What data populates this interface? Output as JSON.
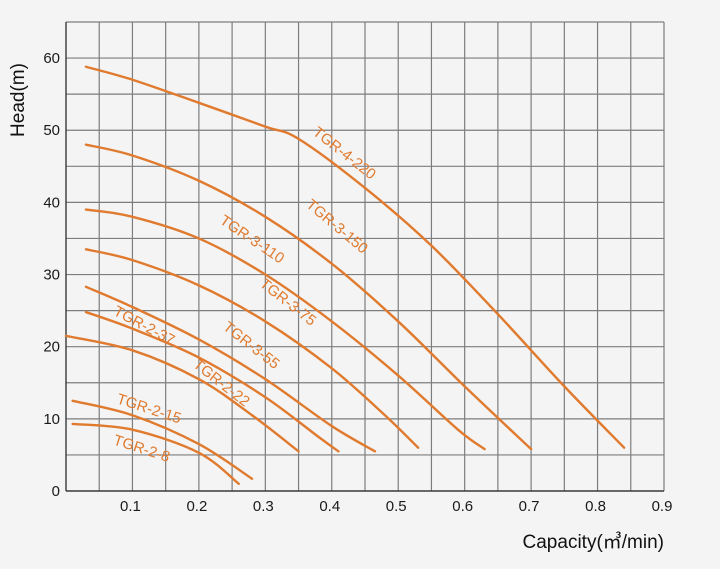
{
  "chart_data": {
    "type": "line",
    "xlabel": "Capacity(㎥/min)",
    "ylabel": "Head(m)",
    "xlim": [
      0,
      0.9
    ],
    "ylim": [
      0,
      65
    ],
    "grid": true,
    "x_ticks": [
      {
        "value": 0.1,
        "label": "0.1"
      },
      {
        "value": 0.2,
        "label": "0.2"
      },
      {
        "value": 0.3,
        "label": "0.3"
      },
      {
        "value": 0.4,
        "label": "0.4"
      },
      {
        "value": 0.5,
        "label": "0.5"
      },
      {
        "value": 0.6,
        "label": "0.6"
      },
      {
        "value": 0.7,
        "label": "0.7"
      },
      {
        "value": 0.8,
        "label": "0.8"
      },
      {
        "value": 0.9,
        "label": "0.9"
      }
    ],
    "y_ticks": [
      {
        "value": 0,
        "label": "0"
      },
      {
        "value": 10,
        "label": "10"
      },
      {
        "value": 20,
        "label": "20"
      },
      {
        "value": 30,
        "label": "30"
      },
      {
        "value": 40,
        "label": "40"
      },
      {
        "value": 50,
        "label": "50"
      },
      {
        "value": 60,
        "label": "60"
      }
    ],
    "series": [
      {
        "name": "TGR-4-220",
        "label_pos": [
          0.37,
          49.5
        ],
        "label_angle": 38,
        "points": [
          [
            0.03,
            58.8
          ],
          [
            0.1,
            57.0
          ],
          [
            0.2,
            53.8
          ],
          [
            0.3,
            50.5
          ],
          [
            0.35,
            48.8
          ],
          [
            0.45,
            42.0
          ],
          [
            0.55,
            34.0
          ],
          [
            0.65,
            24.5
          ],
          [
            0.75,
            14.5
          ],
          [
            0.84,
            6.0
          ]
        ]
      },
      {
        "name": "TGR-3-150",
        "label_pos": [
          0.36,
          39.5
        ],
        "label_angle": 40,
        "points": [
          [
            0.03,
            48.0
          ],
          [
            0.1,
            46.5
          ],
          [
            0.2,
            43.0
          ],
          [
            0.3,
            38.0
          ],
          [
            0.4,
            31.5
          ],
          [
            0.5,
            23.5
          ],
          [
            0.6,
            14.5
          ],
          [
            0.7,
            5.8
          ]
        ]
      },
      {
        "name": "TGR-3-110",
        "label_pos": [
          0.23,
          37.2
        ],
        "label_angle": 34,
        "points": [
          [
            0.03,
            39.0
          ],
          [
            0.1,
            38.0
          ],
          [
            0.2,
            35.0
          ],
          [
            0.3,
            30.0
          ],
          [
            0.4,
            23.5
          ],
          [
            0.5,
            16.0
          ],
          [
            0.59,
            8.5
          ],
          [
            0.63,
            5.8
          ]
        ]
      },
      {
        "name": "TGR-3-75",
        "label_pos": [
          0.29,
          28.5
        ],
        "label_angle": 38,
        "points": [
          [
            0.03,
            33.5
          ],
          [
            0.1,
            32.0
          ],
          [
            0.2,
            28.5
          ],
          [
            0.3,
            23.5
          ],
          [
            0.4,
            17.0
          ],
          [
            0.48,
            10.5
          ],
          [
            0.53,
            6.0
          ]
        ]
      },
      {
        "name": "TGR-3-55",
        "label_pos": [
          0.235,
          22.5
        ],
        "label_angle": 38,
        "points": [
          [
            0.03,
            28.3
          ],
          [
            0.1,
            25.5
          ],
          [
            0.2,
            21.0
          ],
          [
            0.3,
            15.5
          ],
          [
            0.4,
            9.0
          ],
          [
            0.465,
            5.5
          ]
        ]
      },
      {
        "name": "TGR-2-37",
        "label_pos": [
          0.07,
          24.5
        ],
        "label_angle": 28,
        "points": [
          [
            0.03,
            24.8
          ],
          [
            0.1,
            22.5
          ],
          [
            0.2,
            18.5
          ],
          [
            0.3,
            13.0
          ],
          [
            0.38,
            7.5
          ],
          [
            0.41,
            5.5
          ]
        ]
      },
      {
        "name": "TGR-2-22",
        "label_pos": [
          0.19,
          17.3
        ],
        "label_angle": 38,
        "points": [
          [
            0.0,
            21.5
          ],
          [
            0.1,
            19.5
          ],
          [
            0.2,
            15.5
          ],
          [
            0.28,
            10.5
          ],
          [
            0.35,
            5.5
          ]
        ]
      },
      {
        "name": "TGR-2-15",
        "label_pos": [
          0.075,
          12.2
        ],
        "label_angle": 18,
        "points": [
          [
            0.01,
            12.5
          ],
          [
            0.1,
            10.5
          ],
          [
            0.2,
            6.5
          ],
          [
            0.28,
            1.7
          ]
        ]
      },
      {
        "name": "TGR-2-8",
        "label_pos": [
          0.07,
          6.5
        ],
        "label_angle": 18,
        "points": [
          [
            0.01,
            9.3
          ],
          [
            0.1,
            8.5
          ],
          [
            0.2,
            5.3
          ],
          [
            0.26,
            1.0
          ]
        ]
      }
    ]
  }
}
